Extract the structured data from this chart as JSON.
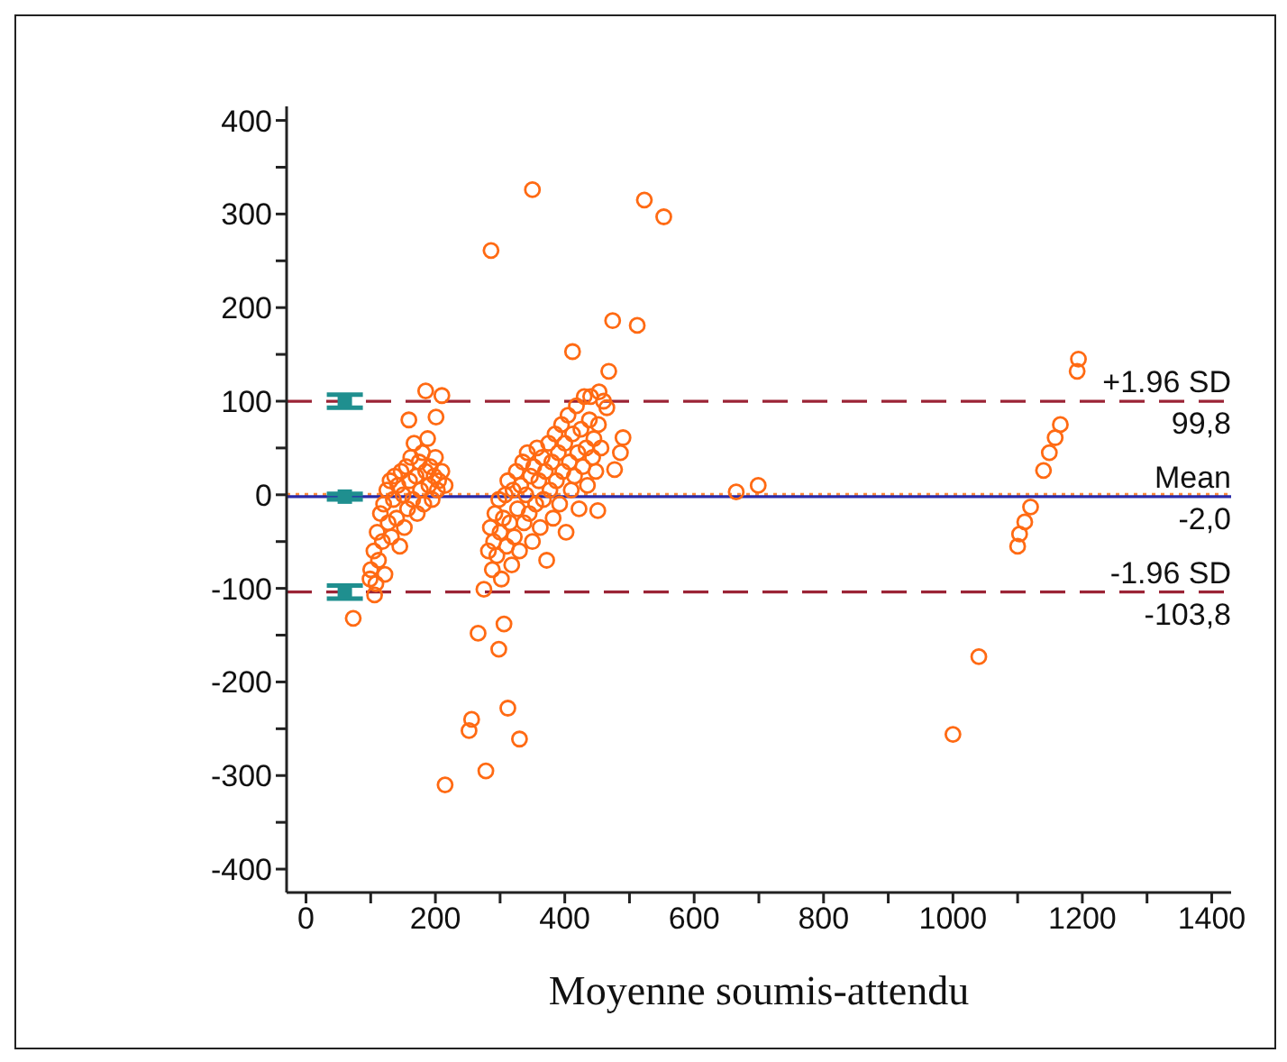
{
  "chart_data": {
    "type": "scatter",
    "xlabel": "Moyenne soumis-attendu",
    "xlim": [
      -30,
      1430
    ],
    "ylim": [
      -425,
      415
    ],
    "xticks": [
      0,
      {
        "value": 100,
        "label": null
      },
      200,
      {
        "value": 300,
        "label": null
      },
      400,
      {
        "value": 500,
        "label": null
      },
      600,
      {
        "value": 700,
        "label": null
      },
      800,
      {
        "value": 900,
        "label": null
      },
      1000,
      {
        "value": 1100,
        "label": null
      },
      1200,
      {
        "value": 1300,
        "label": null
      },
      1400
    ],
    "yticks": [
      -400,
      {
        "value": -350,
        "label": null
      },
      -300,
      {
        "value": -250,
        "label": null
      },
      -200,
      {
        "value": -150,
        "label": null
      },
      -100,
      {
        "value": -50,
        "label": null
      },
      0,
      {
        "value": 50,
        "label": null
      },
      100,
      {
        "value": 150,
        "label": null
      },
      200,
      {
        "value": 250,
        "label": null
      },
      300,
      {
        "value": 350,
        "label": null
      },
      400
    ],
    "grid": false,
    "legend": false,
    "series": [
      {
        "type": "scatter",
        "marker": "circle",
        "color": "#ff6a13",
        "x": [
          100,
          105,
          108,
          110,
          112,
          115,
          118,
          120,
          122,
          125,
          127,
          130,
          132,
          135,
          137,
          140,
          142,
          145,
          147,
          150,
          152,
          155,
          157,
          160,
          162,
          165,
          167,
          170,
          172,
          175,
          177,
          180,
          182,
          185,
          188,
          190,
          192,
          195,
          198,
          200,
          203,
          205,
          210,
          215,
          106,
          99,
          73,
          185,
          210,
          201,
          159,
          282,
          285,
          288,
          290,
          292,
          295,
          298,
          300,
          302,
          305,
          308,
          310,
          312,
          315,
          318,
          320,
          322,
          325,
          327,
          330,
          332,
          335,
          337,
          340,
          342,
          345,
          347,
          350,
          352,
          355,
          357,
          360,
          362,
          365,
          367,
          370,
          372,
          375,
          377,
          380,
          382,
          385,
          387,
          390,
          392,
          395,
          397,
          400,
          402,
          405,
          407,
          410,
          412,
          415,
          418,
          420,
          422,
          425,
          428,
          430,
          433,
          435,
          438,
          440,
          443,
          445,
          448,
          452,
          456,
          460,
          275,
          266,
          298,
          306,
          312,
          256,
          252,
          278,
          330,
          215,
          286,
          350,
          412,
          474,
          468,
          453,
          465,
          490,
          451,
          523,
          553,
          512,
          486,
          477,
          665,
          699,
          1000,
          1040,
          1194,
          1192,
          1166,
          1158,
          1149,
          1140,
          1120,
          1111,
          1103,
          1100
        ],
        "values": [
          -80,
          -60,
          -95,
          -40,
          -70,
          -20,
          -50,
          -10,
          -85,
          5,
          -30,
          15,
          -45,
          -5,
          20,
          -25,
          10,
          -55,
          25,
          0,
          -35,
          30,
          -15,
          15,
          40,
          -5,
          55,
          20,
          -20,
          35,
          5,
          45,
          -10,
          25,
          60,
          10,
          30,
          -5,
          20,
          40,
          5,
          15,
          25,
          10,
          -107,
          -90,
          -132,
          111,
          106,
          83,
          80,
          -60,
          -35,
          -80,
          -50,
          -20,
          -65,
          -5,
          -40,
          -90,
          -25,
          0,
          -55,
          15,
          -30,
          -75,
          5,
          -45,
          25,
          -15,
          -60,
          10,
          35,
          -30,
          0,
          45,
          -20,
          20,
          -50,
          30,
          -10,
          50,
          15,
          -35,
          40,
          -5,
          25,
          -70,
          55,
          5,
          35,
          -25,
          65,
          15,
          45,
          -10,
          75,
          25,
          55,
          -40,
          85,
          35,
          5,
          65,
          20,
          95,
          45,
          -15,
          70,
          30,
          105,
          50,
          10,
          80,
          105,
          40,
          60,
          25,
          75,
          50,
          100,
          -101,
          -148,
          -165,
          -138,
          -228,
          -240,
          -252,
          -295,
          -261,
          -310,
          261,
          326,
          153,
          186,
          132,
          110,
          93,
          61,
          -17,
          315,
          297,
          181,
          45,
          27,
          3,
          10,
          -256,
          -173,
          145,
          132,
          75,
          61,
          45,
          26,
          -13,
          -29,
          -42,
          -55
        ]
      },
      {
        "type": "scatter",
        "marker": "square",
        "color": "#1f8f8f",
        "x": [
          60,
          60,
          60
        ],
        "values": [
          100,
          -2,
          -104
        ],
        "errors": [
          7,
          3,
          7
        ]
      }
    ],
    "ref_lines": [
      {
        "axis": "y",
        "value": 0,
        "color": "#ff8c3a",
        "line_style": "dotted"
      },
      {
        "axis": "y",
        "value": 99.8,
        "label": "+1.96 SD\n99,8",
        "color": "#9b2335",
        "line_style": "dashed"
      },
      {
        "axis": "y",
        "value": -2.0,
        "label": "Mean\n-2,0",
        "color": "#2a2aa8",
        "line_style": "solid"
      },
      {
        "axis": "y",
        "value": -103.8,
        "label": "-1.96 SD\n-103,8",
        "color": "#9b2335",
        "line_style": "dashed"
      }
    ]
  }
}
